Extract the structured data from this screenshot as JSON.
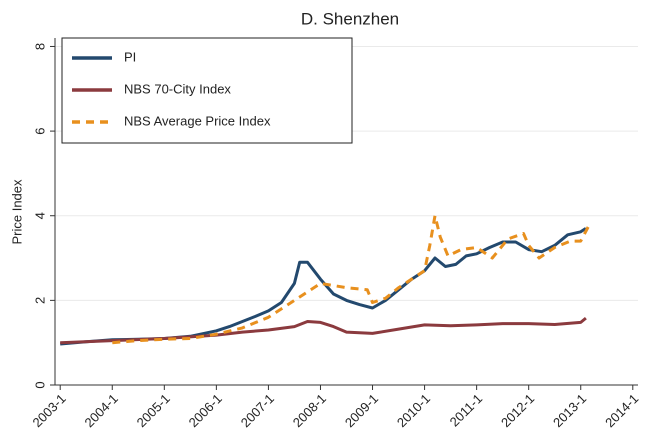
{
  "chart_data": {
    "type": "line",
    "title": "D. Shenzhen",
    "y_label": "Price Index",
    "xlim": [
      2002.9,
      2014.1
    ],
    "ylim": [
      0,
      8.2
    ],
    "xticks": [
      {
        "value": 2003,
        "label": "2003-1"
      },
      {
        "value": 2004,
        "label": "2004-1"
      },
      {
        "value": 2005,
        "label": "2005-1"
      },
      {
        "value": 2006,
        "label": "2006-1"
      },
      {
        "value": 2007,
        "label": "2007-1"
      },
      {
        "value": 2008,
        "label": "2008-1"
      },
      {
        "value": 2009,
        "label": "2009-1"
      },
      {
        "value": 2010,
        "label": "2010-1"
      },
      {
        "value": 2011,
        "label": "2011-1"
      },
      {
        "value": 2012,
        "label": "2012-1"
      },
      {
        "value": 2013,
        "label": "2013-1"
      },
      {
        "value": 2014,
        "label": "2014-1"
      }
    ],
    "yticks": [
      0,
      2,
      4,
      6,
      8
    ],
    "grid": true,
    "legend": "top-left",
    "series": [
      {
        "name": "PI",
        "color": "#23496e",
        "dashed": false,
        "x": [
          2003,
          2003.5,
          2004,
          2004.5,
          2005,
          2005.5,
          2006,
          2006.25,
          2006.5,
          2006.75,
          2007,
          2007.25,
          2007.5,
          2007.6,
          2007.75,
          2008,
          2008.25,
          2008.5,
          2008.75,
          2009,
          2009.25,
          2009.5,
          2009.75,
          2010,
          2010.2,
          2010.4,
          2010.6,
          2010.8,
          2011,
          2011.25,
          2011.5,
          2011.75,
          2012,
          2012.25,
          2012.5,
          2012.75,
          2013,
          2013.1
        ],
        "values": [
          0.97,
          1.02,
          1.07,
          1.08,
          1.1,
          1.15,
          1.28,
          1.38,
          1.5,
          1.62,
          1.75,
          1.95,
          2.4,
          2.9,
          2.9,
          2.5,
          2.15,
          2.0,
          1.9,
          1.82,
          2.0,
          2.25,
          2.5,
          2.7,
          3.0,
          2.8,
          2.85,
          3.05,
          3.1,
          3.25,
          3.38,
          3.38,
          3.2,
          3.15,
          3.3,
          3.55,
          3.62,
          3.7
        ]
      },
      {
        "name": "NBS 70-City Index",
        "color": "#8b3a3e",
        "dashed": false,
        "x": [
          2003,
          2004,
          2005,
          2006,
          2006.5,
          2007,
          2007.5,
          2007.75,
          2008,
          2008.25,
          2008.5,
          2009,
          2009.5,
          2010,
          2010.5,
          2011,
          2011.5,
          2012,
          2012.5,
          2013,
          2013.1
        ],
        "values": [
          1.0,
          1.05,
          1.1,
          1.18,
          1.25,
          1.3,
          1.38,
          1.5,
          1.48,
          1.38,
          1.25,
          1.22,
          1.32,
          1.42,
          1.4,
          1.42,
          1.45,
          1.45,
          1.43,
          1.48,
          1.58
        ]
      },
      {
        "name": "NBS Average Price Index",
        "color": "#e8901e",
        "dashed": true,
        "x": [
          2004,
          2004.5,
          2005,
          2005.5,
          2006,
          2006.5,
          2007,
          2007.5,
          2008,
          2008.5,
          2008.9,
          2009,
          2009.25,
          2009.5,
          2010,
          2010.1,
          2010.2,
          2010.3,
          2010.45,
          2010.7,
          2011,
          2011.3,
          2011.6,
          2011.9,
          2012,
          2012.2,
          2012.5,
          2012.8,
          2013,
          2013.15
        ],
        "values": [
          1.0,
          1.05,
          1.08,
          1.1,
          1.2,
          1.35,
          1.6,
          2.0,
          2.4,
          2.3,
          2.25,
          1.95,
          2.05,
          2.3,
          2.7,
          3.3,
          4.0,
          3.5,
          3.05,
          3.2,
          3.25,
          3.0,
          3.45,
          3.58,
          3.3,
          3.0,
          3.25,
          3.4,
          3.4,
          3.75
        ]
      }
    ]
  }
}
